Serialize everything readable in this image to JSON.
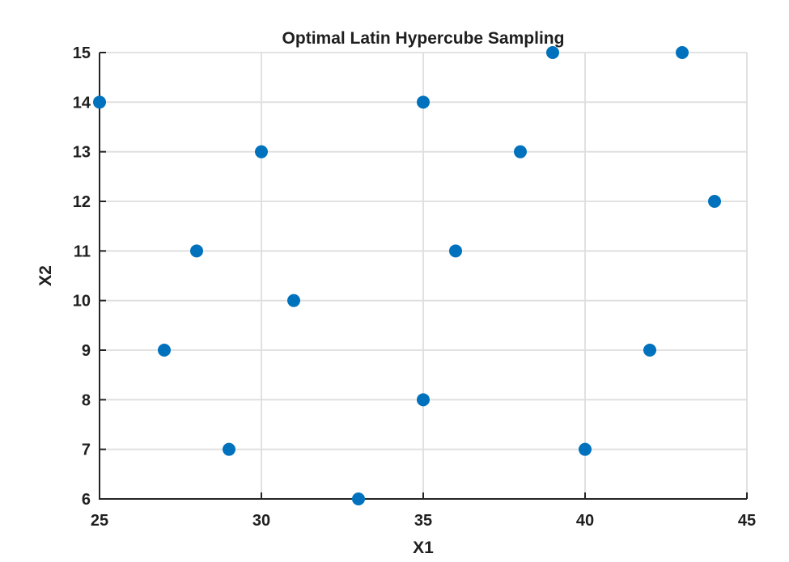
{
  "figure": {
    "background": "#ffffff"
  },
  "chart_data": {
    "type": "scatter",
    "title": "Optimal Latin Hypercube Sampling",
    "xlabel": "X1",
    "ylabel": "X2",
    "xlim": [
      25,
      45
    ],
    "ylim": [
      6,
      15
    ],
    "xticks": [
      25,
      30,
      35,
      40,
      45
    ],
    "yticks": [
      6,
      7,
      8,
      9,
      10,
      11,
      12,
      13,
      14,
      15
    ],
    "grid": true,
    "legend": null,
    "points": [
      [
        25,
        14
      ],
      [
        27,
        9
      ],
      [
        28,
        11
      ],
      [
        29,
        7
      ],
      [
        30,
        13
      ],
      [
        31,
        10
      ],
      [
        33,
        6
      ],
      [
        35,
        8
      ],
      [
        35,
        14
      ],
      [
        36,
        11
      ],
      [
        38,
        13
      ],
      [
        39,
        15
      ],
      [
        40,
        7
      ],
      [
        42,
        9
      ],
      [
        43,
        15
      ],
      [
        44,
        12
      ]
    ],
    "marker": {
      "shape": "circle",
      "color": "#0072bd",
      "radius": 8
    },
    "colors": {
      "axis": "#242424",
      "grid": "#dedede",
      "tick_text": "#1f1f1f",
      "title_text": "#000000"
    }
  }
}
